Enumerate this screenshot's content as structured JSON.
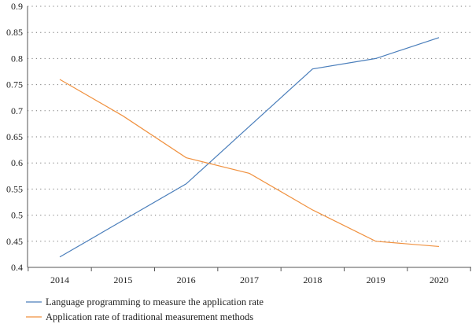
{
  "chart_data": {
    "type": "line",
    "x": [
      2014,
      2015,
      2016,
      2017,
      2018,
      2019,
      2020
    ],
    "xticks": [
      "2014",
      "2015",
      "2016",
      "2017",
      "2018",
      "2019",
      "2020"
    ],
    "yticks": [
      "0.4",
      "0.45",
      "0.5",
      "0.55",
      "0.6",
      "0.65",
      "0.7",
      "0.75",
      "0.8",
      "0.85",
      "0.9"
    ],
    "ylim": [
      0.4,
      0.9
    ],
    "grid": "horizontal dotted",
    "legend_position": "bottom-left",
    "title": "",
    "xlabel": "",
    "ylabel": "",
    "series": [
      {
        "name": "Language programming to measure the application rate",
        "color": "#4a7ebb",
        "values": [
          0.42,
          0.49,
          0.56,
          0.67,
          0.78,
          0.8,
          0.84
        ]
      },
      {
        "name": "Application rate of traditional measurement methods",
        "color": "#f0913f",
        "values": [
          0.76,
          0.69,
          0.61,
          0.58,
          0.51,
          0.45,
          0.44
        ]
      }
    ]
  }
}
